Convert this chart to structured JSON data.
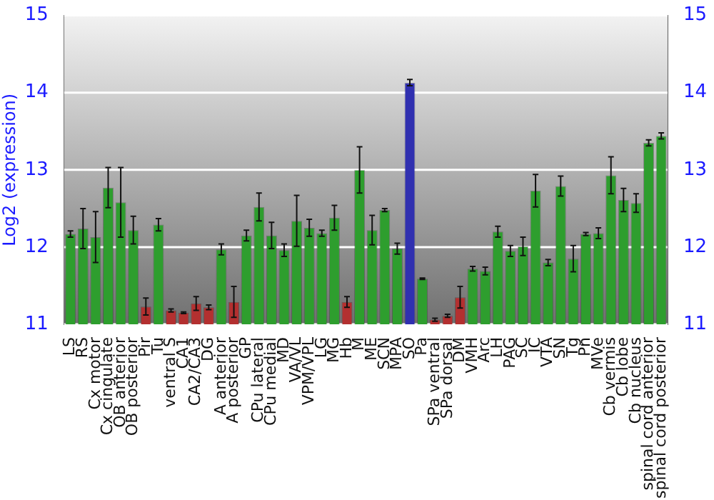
{
  "chart_data": {
    "type": "bar",
    "ylabel": "Log2 (expression)",
    "categories": [
      "LS",
      "RS",
      "Cx motor",
      "Cx cingulate",
      "OB anterior",
      "OB posterior",
      "Pir",
      "Tu",
      "ventral S",
      "CA1",
      "CA2/CA3",
      "DG",
      "A anterior",
      "A posterior",
      "GP",
      "CPu lateral",
      "CPu medial",
      "MD",
      "VA/VL",
      "VPM/VPL",
      "LG",
      "MG",
      "Hb",
      "M",
      "ME",
      "SCN",
      "MPA",
      "SO",
      "Pa",
      "SPa ventral",
      "SPa dorsal",
      "DM",
      "VMH",
      "Arc",
      "LH",
      "PAG",
      "SC",
      "IC",
      "VTA",
      "SN",
      "Tg",
      "Pn",
      "MVe",
      "Cb vermis",
      "Cb lobe",
      "Cb nucleus",
      "spinal cord anterior",
      "spinal cord posterior"
    ],
    "values": [
      12.17,
      12.24,
      12.13,
      12.77,
      12.58,
      12.22,
      11.23,
      12.29,
      11.18,
      11.15,
      11.27,
      11.22,
      11.97,
      11.29,
      12.15,
      12.52,
      12.15,
      11.96,
      12.34,
      12.25,
      12.18,
      12.38,
      11.29,
      13.0,
      12.22,
      12.48,
      11.98,
      14.13,
      11.59,
      11.06,
      11.11,
      11.35,
      11.72,
      11.69,
      12.2,
      11.95,
      12.01,
      12.73,
      11.8,
      12.79,
      11.85,
      12.17,
      12.18,
      12.93,
      12.61,
      12.57,
      13.35,
      13.44
    ],
    "errors": [
      0.04,
      0.26,
      0.33,
      0.26,
      0.45,
      0.18,
      0.11,
      0.08,
      0.02,
      0.01,
      0.09,
      0.03,
      0.07,
      0.2,
      0.07,
      0.18,
      0.17,
      0.08,
      0.33,
      0.11,
      0.04,
      0.16,
      0.07,
      0.3,
      0.19,
      0.02,
      0.07,
      0.04,
      0.01,
      0.02,
      0.02,
      0.14,
      0.03,
      0.05,
      0.07,
      0.07,
      0.12,
      0.21,
      0.04,
      0.13,
      0.17,
      0.02,
      0.07,
      0.24,
      0.15,
      0.12,
      0.04,
      0.04
    ],
    "colors": [
      "#2e9e2e",
      "#2e9e2e",
      "#2e9e2e",
      "#2e9e2e",
      "#2e9e2e",
      "#2e9e2e",
      "#b33030",
      "#2e9e2e",
      "#b33030",
      "#b33030",
      "#b33030",
      "#b33030",
      "#2e9e2e",
      "#b33030",
      "#2e9e2e",
      "#2e9e2e",
      "#2e9e2e",
      "#2e9e2e",
      "#2e9e2e",
      "#2e9e2e",
      "#2e9e2e",
      "#2e9e2e",
      "#b33030",
      "#2e9e2e",
      "#2e9e2e",
      "#2e9e2e",
      "#2e9e2e",
      "#3030b0",
      "#2e9e2e",
      "#b33030",
      "#b33030",
      "#b33030",
      "#2e9e2e",
      "#2e9e2e",
      "#2e9e2e",
      "#2e9e2e",
      "#2e9e2e",
      "#2e9e2e",
      "#2e9e2e",
      "#2e9e2e",
      "#2e9e2e",
      "#2e9e2e",
      "#2e9e2e",
      "#2e9e2e",
      "#2e9e2e",
      "#2e9e2e",
      "#2e9e2e",
      "#2e9e2e"
    ],
    "ylim": [
      11,
      15
    ],
    "yticks": [
      11,
      12,
      13,
      14,
      15
    ],
    "y2lim": [
      11,
      15
    ],
    "y2ticks": [
      11,
      12,
      13,
      14,
      15
    ],
    "grid": "y",
    "legend": false
  }
}
